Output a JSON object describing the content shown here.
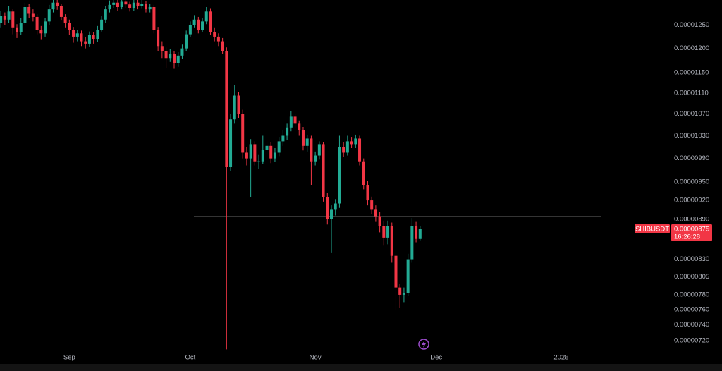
{
  "chart_data": {
    "type": "candlestick",
    "symbol": "SHIBUSDT",
    "countdown": "16:26:28",
    "last_price": {
      "value": 8.75e-06,
      "label": "0.00000875"
    },
    "hline": 8.94e-06,
    "up_color": "#22ab94",
    "down_color": "#f23645",
    "log_scale": true,
    "grid": false,
    "xlim": [
      -0.2,
      164.2
    ],
    "xticks": [
      {
        "value": 17,
        "label": "Sep"
      },
      {
        "value": 47,
        "label": "Oct"
      },
      {
        "value": 78,
        "label": "Nov"
      },
      {
        "value": 108,
        "label": "Dec"
      },
      {
        "value": 139,
        "label": "2026"
      }
    ],
    "ylim": [
      6.92e-06,
      1.306e-05
    ],
    "yticks": [
      {
        "value": 1.25e-05,
        "label": "0.00001250"
      },
      {
        "value": 1.2e-05,
        "label": "0.00001200"
      },
      {
        "value": 1.15e-05,
        "label": "0.00001150"
      },
      {
        "value": 1.11e-05,
        "label": "0.00001110"
      },
      {
        "value": 1.07e-05,
        "label": "0.00001070"
      },
      {
        "value": 1.03e-05,
        "label": "0.00001030"
      },
      {
        "value": 9.9e-06,
        "label": "0.00000990"
      },
      {
        "value": 9.5e-06,
        "label": "0.00000950"
      },
      {
        "value": 9.2e-06,
        "label": "0.00000920"
      },
      {
        "value": 8.9e-06,
        "label": "0.00000890"
      },
      {
        "value": 8.3e-06,
        "label": "0.00000830"
      },
      {
        "value": 8.05e-06,
        "label": "0.00000805"
      },
      {
        "value": 7.8e-06,
        "label": "0.00000780"
      },
      {
        "value": 7.6e-06,
        "label": "0.00000760"
      },
      {
        "value": 7.4e-06,
        "label": "0.00000740"
      },
      {
        "value": 7.2e-06,
        "label": "0.00000720"
      }
    ],
    "open": [
      1.255e-05,
      1.27e-05,
      1.262e-05,
      1.28e-05,
      1.245e-05,
      1.235e-05,
      1.255e-05,
      1.29e-05,
      1.275e-05,
      1.268e-05,
      1.24e-05,
      1.232e-05,
      1.258e-05,
      1.285e-05,
      1.3e-05,
      1.292e-05,
      1.268e-05,
      1.255e-05,
      1.24e-05,
      1.225e-05,
      1.232e-05,
      1.215e-05,
      1.21e-05,
      1.228e-05,
      1.22e-05,
      1.24e-05,
      1.262e-05,
      1.285e-05,
      1.295e-05,
      1.3e-05,
      1.29e-05,
      1.302e-05,
      1.296e-05,
      1.288e-05,
      1.3e-05,
      1.292e-05,
      1.298e-05,
      1.285e-05,
      1.29e-05,
      1.24e-05,
      1.205e-05,
      1.195e-05,
      1.18e-05,
      1.188e-05,
      1.17e-05,
      1.185e-05,
      1.2e-05,
      1.23e-05,
      1.25e-05,
      1.262e-05,
      1.24e-05,
      1.258e-05,
      1.28e-05,
      1.235e-05,
      1.225e-05,
      1.215e-05,
      1.195e-05,
      9.75e-06,
      1.06e-05,
      1.105e-05,
      1.07e-05,
      1e-05,
      9.9e-06,
      1.015e-05,
      9.85e-06,
      9.85e-06,
      1.005e-05,
      1.012e-05,
      9.9e-06,
      1e-05,
      1.02e-05,
      1.03e-05,
      1.045e-05,
      1.065e-05,
      1.052e-05,
      1.04e-05,
      1.012e-05,
      1.025e-05,
      9.85e-06,
      9.95e-06,
      1.015e-05,
      9.25e-06,
      8.9e-06,
      9.05e-06,
      9.15e-06,
      1.01e-05,
      1e-05,
      1.02e-05,
      1.015e-05,
      1.025e-05,
      9.85e-06,
      9.45e-06,
      9.2e-06,
      9.05e-06,
      8.95e-06,
      8.8e-06,
      8.62e-06,
      8.8e-06,
      8.35e-06,
      7.9e-06,
      7.8e-06,
      7.82e-06,
      8.3e-06,
      8.8e-06,
      8.6e-06
    ],
    "high": [
      1.282e-05,
      1.278e-05,
      1.292e-05,
      1.285e-05,
      1.252e-05,
      1.265e-05,
      1.3e-05,
      1.298e-05,
      1.285e-05,
      1.274e-05,
      1.248e-05,
      1.266e-05,
      1.295e-05,
      1.31e-05,
      1.31e-05,
      1.298e-05,
      1.274e-05,
      1.262e-05,
      1.246e-05,
      1.24e-05,
      1.238e-05,
      1.224e-05,
      1.236e-05,
      1.234e-05,
      1.248e-05,
      1.27e-05,
      1.292e-05,
      1.305e-05,
      1.31e-05,
      1.308e-05,
      1.31e-05,
      1.31e-05,
      1.302e-05,
      1.308e-05,
      1.308e-05,
      1.306e-05,
      1.304e-05,
      1.298e-05,
      1.295e-05,
      1.246e-05,
      1.215e-05,
      1.202e-05,
      1.198e-05,
      1.194e-05,
      1.192e-05,
      1.208e-05,
      1.238e-05,
      1.258e-05,
      1.272e-05,
      1.268e-05,
      1.265e-05,
      1.29e-05,
      1.286e-05,
      1.245e-05,
      1.232e-05,
      1.222e-05,
      1.202e-05,
      1.07e-05,
      1.125e-05,
      1.112e-05,
      1.078e-05,
      1.01e-05,
      1.024e-05,
      1.02e-05,
      9.96e-06,
      1.03e-05,
      1.02e-05,
      1.018e-05,
      1.008e-05,
      1.028e-05,
      1.04e-05,
      1.052e-05,
      1.075e-05,
      1.07e-05,
      1.058e-05,
      1.046e-05,
      1.032e-05,
      1.03e-05,
      1.002e-05,
      1.02e-05,
      1.018e-05,
      9.32e-06,
      9.12e-06,
      9.22e-06,
      1.03e-05,
      1.018e-05,
      1.03e-05,
      1.028e-05,
      1.032e-05,
      1.03e-05,
      9.9e-06,
      9.52e-06,
      9.26e-06,
      9.12e-06,
      9.02e-06,
      8.88e-06,
      8.88e-06,
      8.85e-06,
      8.4e-06,
      7.95e-06,
      7.9e-06,
      8.38e-06,
      8.92e-06,
      8.86e-06,
      8.8e-06
    ],
    "low": [
      1.245e-05,
      1.25e-05,
      1.255e-05,
      1.23e-05,
      1.222e-05,
      1.228e-05,
      1.25e-05,
      1.265e-05,
      1.258e-05,
      1.23e-05,
      1.218e-05,
      1.225e-05,
      1.25e-05,
      1.278e-05,
      1.284e-05,
      1.26e-05,
      1.245e-05,
      1.228e-05,
      1.212e-05,
      1.215e-05,
      1.205e-05,
      1.2e-05,
      1.204e-05,
      1.21e-05,
      1.214e-05,
      1.236e-05,
      1.255e-05,
      1.278e-05,
      1.288e-05,
      1.282e-05,
      1.285e-05,
      1.288e-05,
      1.28e-05,
      1.282e-05,
      1.285e-05,
      1.286e-05,
      1.278e-05,
      1.278e-05,
      1.232e-05,
      1.195e-05,
      1.18e-05,
      1.16e-05,
      1.172e-05,
      1.158e-05,
      1.162e-05,
      1.178e-05,
      1.195e-05,
      1.224e-05,
      1.245e-05,
      1.232e-05,
      1.234e-05,
      1.252e-05,
      1.228e-05,
      1.215e-05,
      1.205e-05,
      1.188e-05,
      7.09e-06,
      9.68e-06,
      1.052e-05,
      1.062e-05,
      9.9e-06,
      9.78e-06,
      9.25e-06,
      9.78e-06,
      9.72e-06,
      9.8e-06,
      9.96e-06,
      9.82e-06,
      9.84e-06,
      9.94e-06,
      1.012e-05,
      1.022e-05,
      1.038e-05,
      1.044e-05,
      1.03e-05,
      1.004e-05,
      1.002e-05,
      9.45e-06,
      9.78e-06,
      9.88e-06,
      9.18e-06,
      8.82e-06,
      8.4e-06,
      8.96e-06,
      9.08e-06,
      9.92e-06,
      9.95e-06,
      1.008e-05,
      1.008e-05,
      9.78e-06,
      9.38e-06,
      9.12e-06,
      8.98e-06,
      8.86e-06,
      8.7e-06,
      8.5e-06,
      8.52e-06,
      8.25e-06,
      7.6e-06,
      7.62e-06,
      7.7e-06,
      7.78e-06,
      8.25e-06,
      8.55e-06,
      8.58e-06
    ],
    "close": [
      1.27e-05,
      1.262e-05,
      1.28e-05,
      1.245e-05,
      1.235e-05,
      1.255e-05,
      1.29e-05,
      1.275e-05,
      1.268e-05,
      1.24e-05,
      1.232e-05,
      1.258e-05,
      1.285e-05,
      1.3e-05,
      1.292e-05,
      1.268e-05,
      1.255e-05,
      1.24e-05,
      1.225e-05,
      1.232e-05,
      1.215e-05,
      1.21e-05,
      1.228e-05,
      1.22e-05,
      1.24e-05,
      1.262e-05,
      1.285e-05,
      1.295e-05,
      1.3e-05,
      1.29e-05,
      1.302e-05,
      1.296e-05,
      1.288e-05,
      1.3e-05,
      1.292e-05,
      1.298e-05,
      1.285e-05,
      1.29e-05,
      1.24e-05,
      1.205e-05,
      1.195e-05,
      1.18e-05,
      1.188e-05,
      1.17e-05,
      1.185e-05,
      1.2e-05,
      1.23e-05,
      1.25e-05,
      1.262e-05,
      1.24e-05,
      1.258e-05,
      1.28e-05,
      1.235e-05,
      1.225e-05,
      1.215e-05,
      1.195e-05,
      9.75e-06,
      1.06e-05,
      1.105e-05,
      1.07e-05,
      1e-05,
      9.9e-06,
      1.015e-05,
      9.85e-06,
      9.85e-06,
      1.005e-05,
      1.012e-05,
      9.9e-06,
      1e-05,
      1.02e-05,
      1.03e-05,
      1.045e-05,
      1.065e-05,
      1.052e-05,
      1.04e-05,
      1.012e-05,
      1.025e-05,
      9.85e-06,
      9.95e-06,
      1.015e-05,
      9.25e-06,
      8.9e-06,
      9.05e-06,
      9.15e-06,
      1.01e-05,
      1e-05,
      1.02e-05,
      1.015e-05,
      1.025e-05,
      9.85e-06,
      9.45e-06,
      9.2e-06,
      9.05e-06,
      8.95e-06,
      8.8e-06,
      8.62e-06,
      8.8e-06,
      8.35e-06,
      7.9e-06,
      7.8e-06,
      7.82e-06,
      8.3e-06,
      8.8e-06,
      8.6e-06,
      8.75e-06
    ]
  }
}
